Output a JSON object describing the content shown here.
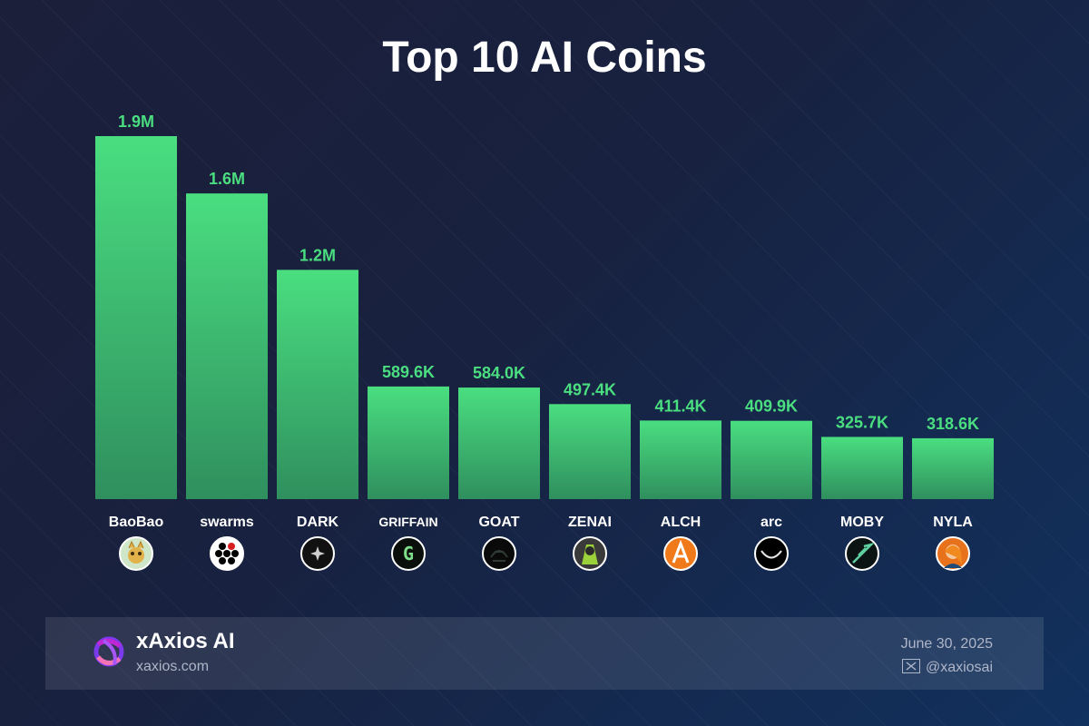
{
  "chart_data": {
    "type": "bar",
    "title": "Top 10 AI Coins",
    "categories": [
      "BaoBao",
      "swarms",
      "DARK",
      "GRIFFAIN",
      "GOAT",
      "ZENAI",
      "ALCH",
      "arc",
      "MOBY",
      "NYLA"
    ],
    "values": [
      1900000,
      1600000,
      1200000,
      589600,
      584000,
      497400,
      411400,
      409900,
      325700,
      318600
    ],
    "value_labels": [
      "1.9M",
      "1.6M",
      "1.2M",
      "589.6K",
      "584.0K",
      "497.4K",
      "411.4K",
      "409.9K",
      "325.7K",
      "318.6K"
    ],
    "icons": [
      "baobao-icon",
      "swarms-icon",
      "dark-icon",
      "griffain-icon",
      "goat-icon",
      "zenai-icon",
      "alch-icon",
      "arc-icon",
      "moby-icon",
      "nyla-icon"
    ],
    "ylim": [
      0,
      1900000
    ],
    "bar_color_top": "#4ade80",
    "bar_color_bottom": "#2f8f5e",
    "label_color": "#4ade80",
    "grid": false,
    "legend": "none"
  },
  "footer": {
    "brand": "xAxios AI",
    "site": "xaxios.com",
    "date": "June 30, 2025",
    "handle": "@xaxiosai"
  }
}
